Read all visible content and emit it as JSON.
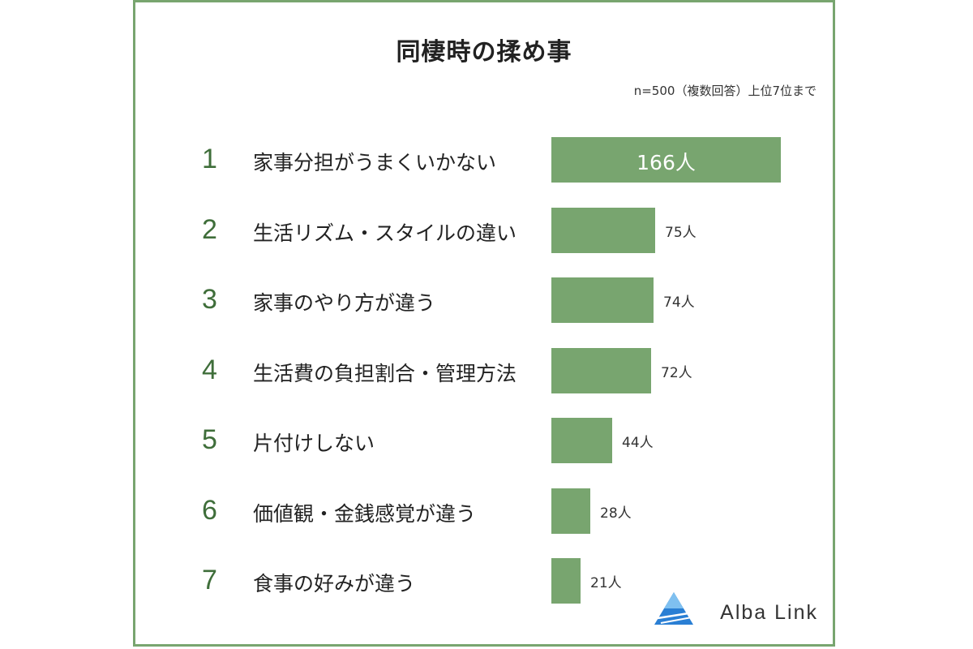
{
  "chart_data": {
    "type": "bar",
    "orientation": "horizontal",
    "title": "同棲時の揉め事",
    "note": "n=500（複数回答）上位7位まで",
    "categories": [
      "家事分担がうまくいかない",
      "生活リズム・スタイルの違い",
      "家事のやり方が違う",
      "生活費の負担割合・管理方法",
      "片付けしない",
      "価値観・金銭感覚が違う",
      "食事の好みが違う"
    ],
    "ranks": [
      "1",
      "2",
      "3",
      "4",
      "5",
      "6",
      "7"
    ],
    "values": [
      166,
      75,
      74,
      72,
      44,
      28,
      21
    ],
    "value_labels": [
      "166人",
      "75人",
      "74人",
      "72人",
      "44人",
      "28人",
      "21人"
    ],
    "grid": false,
    "legend": "none",
    "bar_color": "#78a56f",
    "rank_color": "#3f6e3a"
  },
  "brand": {
    "name": "Alba Link",
    "accent": "#2a7fd4"
  }
}
